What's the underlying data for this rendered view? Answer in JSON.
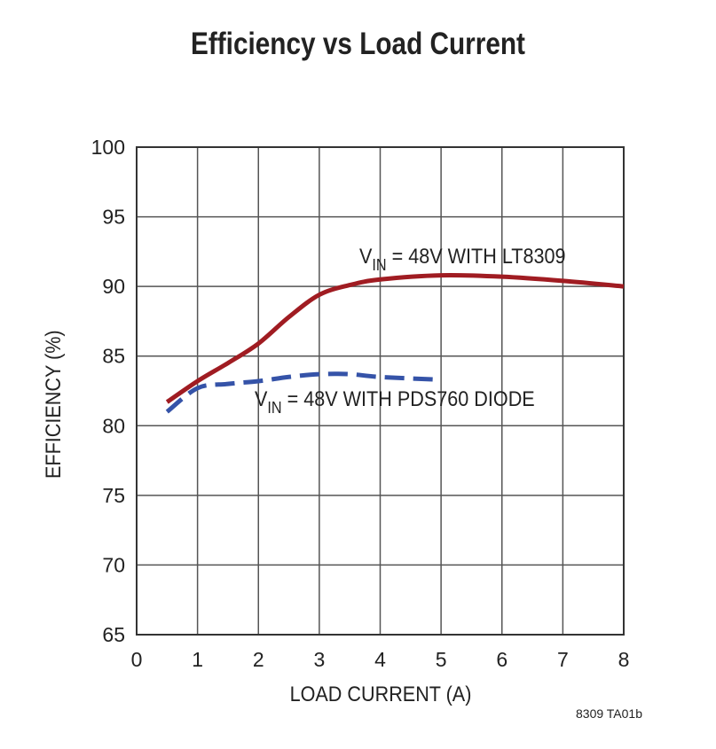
{
  "chart_data": {
    "type": "line",
    "title": "Efficiency vs Load Current",
    "xlabel": "LOAD CURRENT (A)",
    "ylabel": "EFFICIENCY (%)",
    "xlim": [
      0,
      8
    ],
    "ylim": [
      65,
      100
    ],
    "xticks": [
      0,
      1,
      2,
      3,
      4,
      5,
      6,
      7,
      8
    ],
    "yticks": [
      65,
      70,
      75,
      80,
      85,
      90,
      95,
      100
    ],
    "grid": true,
    "series": [
      {
        "label_main": "V",
        "label_sub": "IN",
        "label_rest": " = 48V WITH LT8309",
        "color": "#a01c22",
        "style": "solid",
        "x": [
          0.5,
          1,
          1.5,
          2,
          2.5,
          3,
          3.5,
          4,
          5,
          6,
          7,
          8
        ],
        "y": [
          81.7,
          83.2,
          84.5,
          85.9,
          87.8,
          89.4,
          90.1,
          90.5,
          90.8,
          90.7,
          90.4,
          90.0
        ]
      },
      {
        "label_main": "V",
        "label_sub": "IN",
        "label_rest": " = 48V WITH PDS760 DIODE",
        "color": "#3553a8",
        "style": "dashed",
        "x": [
          0.5,
          1,
          1.5,
          2,
          2.5,
          3,
          3.5,
          4,
          5
        ],
        "y": [
          81.0,
          82.7,
          83.0,
          83.2,
          83.5,
          83.7,
          83.7,
          83.5,
          83.3
        ]
      }
    ]
  },
  "figure_code": "8309 TA01b"
}
